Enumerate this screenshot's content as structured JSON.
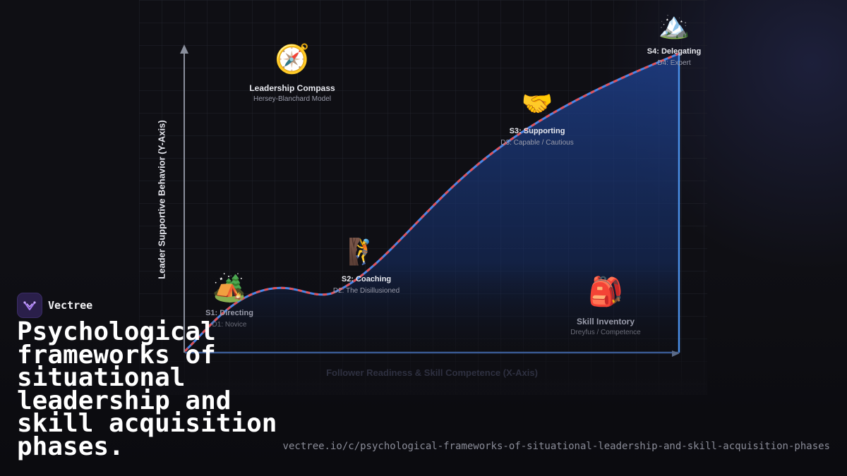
{
  "brand": {
    "name": "Vectree",
    "logo_icon": "vectree-logo-icon",
    "accent": "#a77bf3"
  },
  "headline": "Psychological frameworks of situational leadership and skill acquisition phases.",
  "url": "vectree.io/c/psychological-frameworks-of-situational-leadership-and-skill-acquisition-phases",
  "axes": {
    "y_label": "Leader Supportive Behavior (Y-Axis)",
    "x_label": "Follower Readiness & Skill Competence (X-Axis)"
  },
  "colors": {
    "curve_dash": "#e0525a",
    "curve_base": "#4a86e8",
    "area_fill": "#1e3f8a",
    "axis": "#8a8f9c",
    "frame": "#4a8fe8"
  },
  "nodes": {
    "compass": {
      "icon": "compass-icon",
      "glyph": "🧭",
      "title": "Leadership Compass",
      "subtitle": "Hersey-Blanchard Model"
    },
    "s1": {
      "icon": "camping-tent-icon",
      "glyph": "🏕️",
      "title": "S1: Directing",
      "subtitle": "D1: Novice"
    },
    "s2": {
      "icon": "climbing-person-icon",
      "glyph": "🧗",
      "title": "S2: Coaching",
      "subtitle": "D2: The Disillusioned"
    },
    "s3": {
      "icon": "handshake-icon",
      "glyph": "🤝",
      "title": "S3: Supporting",
      "subtitle": "D3: Capable / Cautious"
    },
    "s4": {
      "icon": "mountain-peak-icon",
      "glyph": "🏔️",
      "title": "S4: Delegating",
      "subtitle": "D4: Expert"
    },
    "inventory": {
      "icon": "backpack-icon",
      "glyph": "🎒",
      "title": "Skill Inventory",
      "subtitle": "Dreyfus / Competence"
    }
  }
}
